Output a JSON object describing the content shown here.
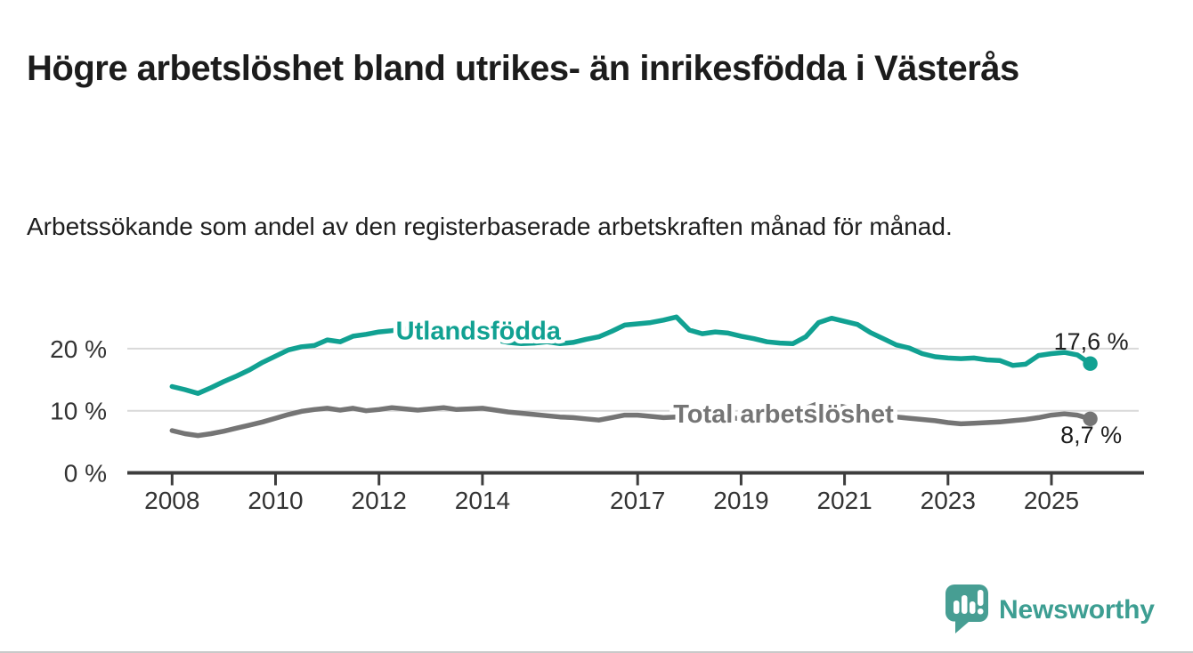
{
  "page": {
    "title": "Högre arbetslöshet bland utrikes- än inrikesfödda i Västerås",
    "subtitle": "Arbetssökande som andel av den registerbaserade arbetskraften månad för månad.",
    "background_color": "#ffffff"
  },
  "branding": {
    "name": "Newsworthy",
    "icon": "newsworthy-speech-bubble-bar-chart-icon",
    "icon_color": "#479e93",
    "text_color": "#3d9e92"
  },
  "chart_data": {
    "type": "line",
    "title": "",
    "xlabel": "",
    "ylabel": "%",
    "grid": "horizontal",
    "legend": "inline-labels-on-lines",
    "x_axis": {
      "ticks": [
        2008,
        2010,
        2012,
        2014,
        2017,
        2019,
        2021,
        2023,
        2025
      ],
      "range": [
        2007.1,
        2026.8
      ]
    },
    "y_axis": {
      "ticks": [
        {
          "value": 0,
          "label": "0 %"
        },
        {
          "value": 10,
          "label": "10 %"
        },
        {
          "value": 20,
          "label": "20 %"
        }
      ],
      "gridlines": [
        10,
        20
      ],
      "range": [
        0,
        27
      ]
    },
    "x": [
      2008,
      2008.25,
      2008.5,
      2008.75,
      2009,
      2009.25,
      2009.5,
      2009.75,
      2010,
      2010.25,
      2010.5,
      2010.75,
      2011,
      2011.25,
      2011.5,
      2011.75,
      2012,
      2012.25,
      2012.5,
      2012.75,
      2013,
      2013.25,
      2013.5,
      2013.75,
      2014,
      2014.25,
      2014.5,
      2014.75,
      2015,
      2015.25,
      2015.5,
      2015.75,
      2016,
      2016.25,
      2016.5,
      2016.75,
      2017,
      2017.25,
      2017.5,
      2017.75,
      2018,
      2018.25,
      2018.5,
      2018.75,
      2019,
      2019.25,
      2019.5,
      2019.75,
      2020,
      2020.25,
      2020.5,
      2020.75,
      2021,
      2021.25,
      2021.5,
      2021.75,
      2022,
      2022.25,
      2022.5,
      2022.75,
      2023,
      2023.25,
      2023.5,
      2023.75,
      2024,
      2024.25,
      2024.5,
      2024.75,
      2025,
      2025.25,
      2025.5,
      2025.75
    ],
    "series": [
      {
        "name": "Utlandsfödda",
        "color": "#11a192",
        "end_label": "17,6 %",
        "end_value": 17.6,
        "end_label_position": "above",
        "label_anchor": {
          "x": 2013.92,
          "y": 22.8
        },
        "values": [
          13.9,
          13.4,
          12.8,
          13.7,
          14.7,
          15.6,
          16.6,
          17.8,
          18.8,
          19.8,
          20.3,
          20.5,
          21.4,
          21.1,
          22.0,
          22.3,
          22.7,
          22.9,
          23.2,
          22.8,
          22.9,
          23.1,
          22.8,
          22.4,
          22.0,
          21.4,
          21.0,
          20.8,
          20.9,
          21.1,
          20.8,
          21.0,
          21.5,
          21.9,
          22.8,
          23.8,
          24.0,
          24.2,
          24.6,
          25.1,
          23.0,
          22.4,
          22.7,
          22.5,
          22.0,
          21.6,
          21.1,
          20.9,
          20.8,
          21.9,
          24.2,
          24.9,
          24.4,
          23.9,
          22.6,
          21.6,
          20.6,
          20.1,
          19.2,
          18.7,
          18.5,
          18.4,
          18.5,
          18.2,
          18.1,
          17.3,
          17.5,
          18.9,
          19.2,
          19.4,
          19.0,
          17.6
        ]
      },
      {
        "name": "Total arbetslöshet",
        "color": "#757575",
        "end_label": "8,7 %",
        "end_value": 8.7,
        "end_label_position": "below",
        "label_anchor": {
          "x": 2019.82,
          "y": 9.4
        },
        "values": [
          6.8,
          6.3,
          6.0,
          6.3,
          6.7,
          7.2,
          7.7,
          8.2,
          8.8,
          9.4,
          9.9,
          10.2,
          10.4,
          10.1,
          10.4,
          10.0,
          10.2,
          10.5,
          10.3,
          10.1,
          10.3,
          10.5,
          10.2,
          10.3,
          10.4,
          10.1,
          9.8,
          9.6,
          9.4,
          9.2,
          9.0,
          8.9,
          8.7,
          8.5,
          8.9,
          9.3,
          9.3,
          9.1,
          8.9,
          9.0,
          8.9,
          8.8,
          8.7,
          8.8,
          8.8,
          8.9,
          9.0,
          9.2,
          9.4,
          10.4,
          11.2,
          11.0,
          10.6,
          10.1,
          9.7,
          9.3,
          9.0,
          8.8,
          8.6,
          8.4,
          8.1,
          7.9,
          8.0,
          8.1,
          8.2,
          8.4,
          8.6,
          8.9,
          9.3,
          9.5,
          9.3,
          8.7
        ]
      }
    ]
  }
}
